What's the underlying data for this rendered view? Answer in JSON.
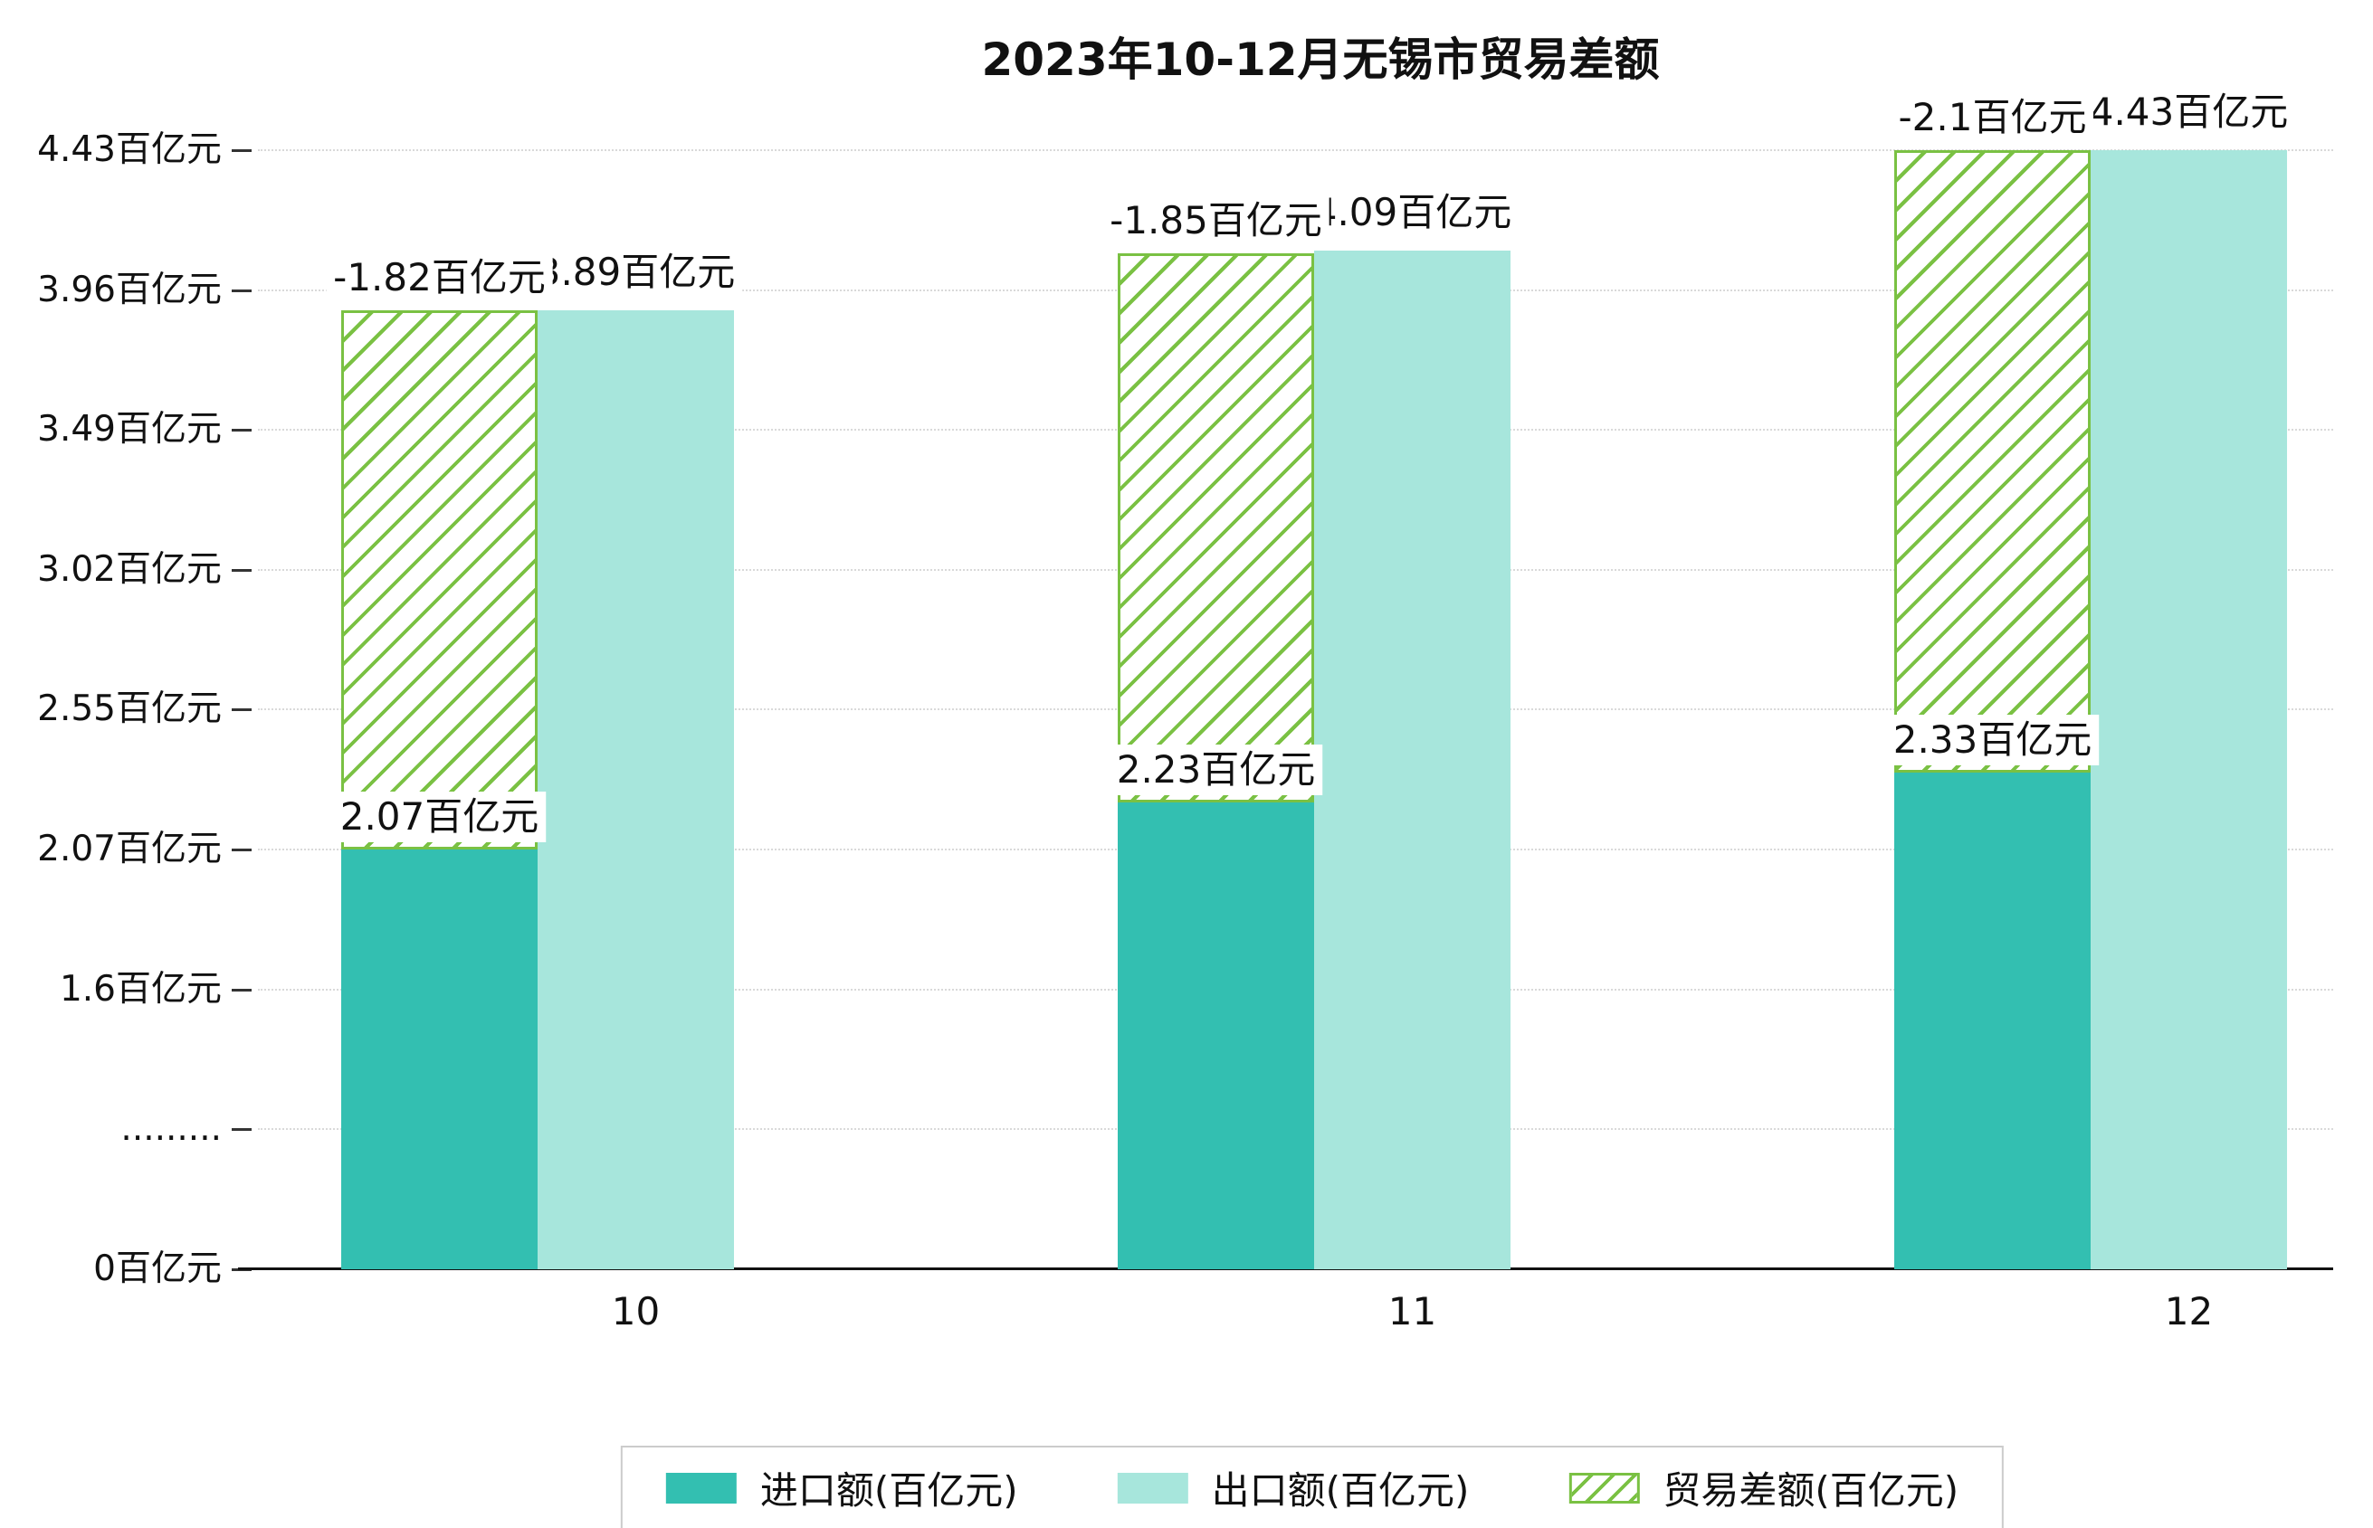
{
  "title": "2023年10-12月无锡市贸易差额",
  "chart_data": {
    "type": "bar",
    "title": "2023年10-12月无锡市贸易差额",
    "categories": [
      "10",
      "11",
      "12"
    ],
    "unit": "百亿元",
    "series": [
      {
        "name": "进口额(百亿元)",
        "values": [
          2.07,
          2.23,
          2.33
        ],
        "labels": [
          "2.07百亿元",
          "2.23百亿元",
          "2.33百亿元"
        ],
        "color": "#33bfb1",
        "style": "solid"
      },
      {
        "name": "出口额(百亿元)",
        "values": [
          3.89,
          4.09,
          4.43
        ],
        "labels": [
          "3.89百亿元",
          "4.09百亿元",
          "4.43百亿元"
        ],
        "color": "#a7e6dc",
        "style": "solid"
      },
      {
        "name": "贸易差额(百亿元)",
        "values": [
          -1.82,
          -1.85,
          -2.1
        ],
        "labels": [
          "-1.82百亿元",
          "-1.85百亿元",
          "-2.1百亿元"
        ],
        "color": "#7ac143",
        "style": "hatched"
      }
    ],
    "y_ticks": [
      {
        "label": "4.43百亿元",
        "value": 4.43
      },
      {
        "label": "3.96百亿元",
        "value": 3.96
      },
      {
        "label": "3.49百亿元",
        "value": 3.49
      },
      {
        "label": "3.02百亿元",
        "value": 3.02
      },
      {
        "label": "2.55百亿元",
        "value": 2.55
      },
      {
        "label": "2.07百亿元",
        "value": 2.07
      },
      {
        "label": "1.6百亿元",
        "value": 1.6
      },
      {
        "label": ".........",
        "value": null
      },
      {
        "label": "0百亿元",
        "value": 0
      }
    ],
    "ylim": [
      0,
      4.43
    ],
    "axis_break_between": [
      0,
      1.6
    ],
    "grid": "dotted-horizontal",
    "legend_position": "bottom"
  },
  "colors": {
    "import": "#33bfb1",
    "export": "#a7e6dc",
    "balance": "#7ac143",
    "grid": "#d9d9d9",
    "axis": "#111111"
  }
}
